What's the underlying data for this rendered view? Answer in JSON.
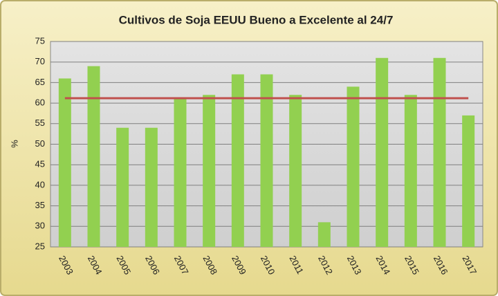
{
  "chart_data": {
    "type": "bar",
    "title": "Cultivos de Soja EEUU Bueno a Excelente al 24/7",
    "y_label": "%",
    "categories": [
      "2003",
      "2004",
      "2005",
      "2006",
      "2007",
      "2008",
      "2009",
      "2010",
      "2011",
      "2012",
      "2013",
      "2014",
      "2015",
      "2016",
      "2017"
    ],
    "series": [
      {
        "type": "bar",
        "color": "#92d050",
        "values": [
          66,
          69,
          54,
          54,
          61,
          62,
          67,
          67,
          62,
          31,
          64,
          71,
          62,
          71,
          57
        ]
      },
      {
        "type": "line",
        "color": "#c0504d",
        "values": [
          61.2,
          61.2,
          61.2,
          61.2,
          61.2,
          61.2,
          61.2,
          61.2,
          61.2,
          61.2,
          61.2,
          61.2,
          61.2,
          61.2,
          61.2
        ]
      }
    ],
    "ylim": [
      25,
      75
    ],
    "yticks": [
      25,
      30,
      35,
      40,
      45,
      50,
      55,
      60,
      65,
      70,
      75
    ],
    "grid": true
  }
}
